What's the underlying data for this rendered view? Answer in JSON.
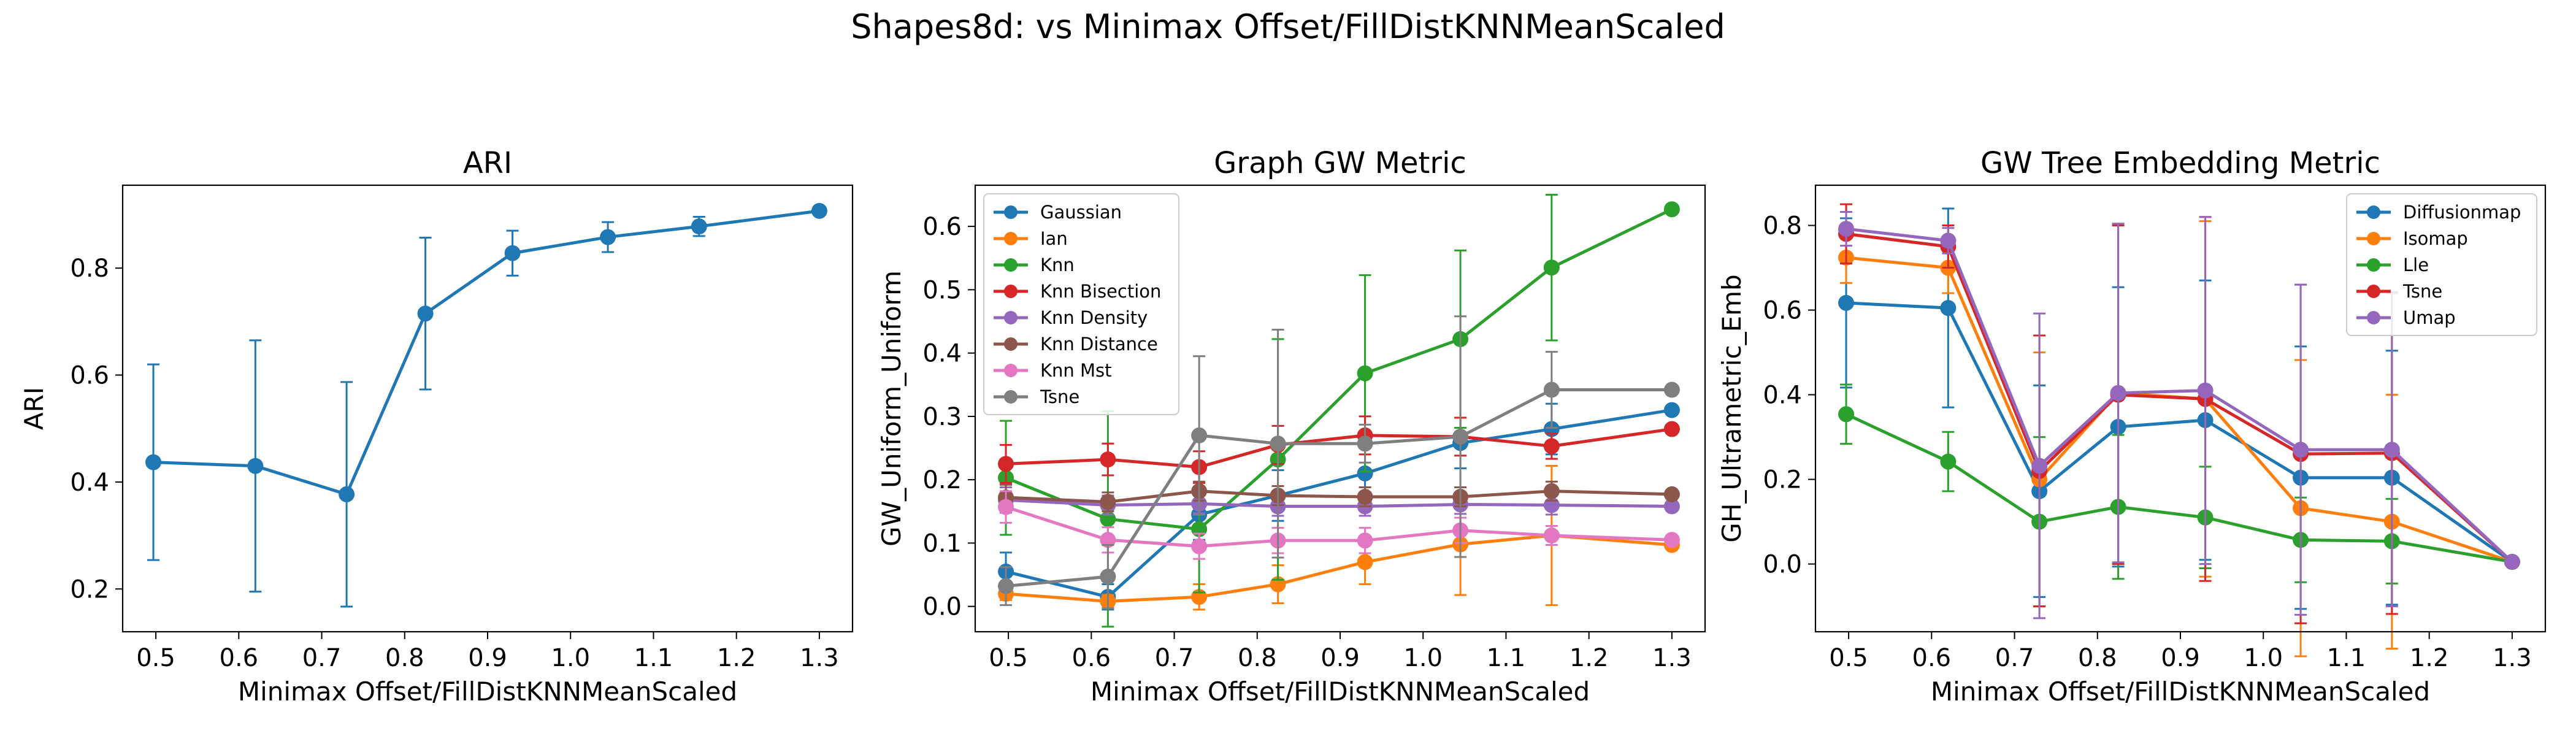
{
  "suptitle": "Shapes8d: vs Minimax Offset/FillDistKNNMeanScaled",
  "chart_data": [
    {
      "type": "line",
      "title": "ARI",
      "xlabel": "Minimax Offset/FillDistKNNMeanScaled",
      "ylabel": "ARI",
      "xlim": [
        0.46,
        1.34
      ],
      "ylim": [
        0.12,
        0.955
      ],
      "xticks": [
        0.5,
        0.6,
        0.7,
        0.8,
        0.9,
        1.0,
        1.1,
        1.2,
        1.3
      ],
      "xtick_labels": [
        "0.5",
        "0.6",
        "0.7",
        "0.8",
        "0.9",
        "1.0",
        "1.1",
        "1.2",
        "1.3"
      ],
      "yticks": [
        0.2,
        0.4,
        0.6,
        0.8
      ],
      "ytick_labels": [
        "0.2",
        "0.4",
        "0.6",
        "0.8"
      ],
      "x": [
        0.497,
        0.62,
        0.73,
        0.825,
        0.93,
        1.045,
        1.155,
        1.3
      ],
      "legend": null,
      "series": [
        {
          "color": "#1f77b4",
          "marker": "circle",
          "values": [
            0.437,
            0.43,
            0.377,
            0.715,
            0.828,
            0.858,
            0.878,
            0.907
          ],
          "err": [
            0.183,
            0.235,
            0.21,
            0.142,
            0.042,
            0.028,
            0.018,
            0.0
          ]
        }
      ]
    },
    {
      "type": "line",
      "title": "Graph GW Metric",
      "xlabel": "Minimax Offset/FillDistKNNMeanScaled",
      "ylabel": "GW_Uniform_Uniform",
      "xlim": [
        0.46,
        1.34
      ],
      "ylim": [
        -0.04,
        0.665
      ],
      "xticks": [
        0.5,
        0.6,
        0.7,
        0.8,
        0.9,
        1.0,
        1.1,
        1.2,
        1.3
      ],
      "xtick_labels": [
        "0.5",
        "0.6",
        "0.7",
        "0.8",
        "0.9",
        "1.0",
        "1.1",
        "1.2",
        "1.3"
      ],
      "yticks": [
        0.0,
        0.1,
        0.2,
        0.3,
        0.4,
        0.5,
        0.6
      ],
      "ytick_labels": [
        "0.0",
        "0.1",
        "0.2",
        "0.3",
        "0.4",
        "0.5",
        "0.6"
      ],
      "x": [
        0.497,
        0.62,
        0.73,
        0.825,
        0.93,
        1.045,
        1.155,
        1.3
      ],
      "legend": "upper-left",
      "series": [
        {
          "name": "Gaussian",
          "color": "#1f77b4",
          "marker": "circle",
          "values": [
            0.055,
            0.015,
            0.145,
            0.175,
            0.21,
            0.258,
            0.28,
            0.31
          ],
          "err": [
            0.03,
            0.02,
            0.04,
            0.04,
            0.04,
            0.04,
            0.04,
            0.0
          ]
        },
        {
          "name": "Ian",
          "color": "#ff7f0e",
          "marker": "circle",
          "values": [
            0.02,
            0.008,
            0.015,
            0.035,
            0.07,
            0.098,
            0.112,
            0.097
          ],
          "err": [
            0.01,
            0.01,
            0.02,
            0.03,
            0.035,
            0.08,
            0.11,
            0.0
          ]
        },
        {
          "name": "Knn",
          "color": "#2ca02c",
          "marker": "circle",
          "values": [
            0.203,
            0.138,
            0.122,
            0.232,
            0.368,
            0.422,
            0.535,
            0.627
          ],
          "err": [
            0.09,
            0.17,
            0.1,
            0.19,
            0.155,
            0.14,
            0.115,
            0.0
          ]
        },
        {
          "name": "Knn Bisection",
          "color": "#d62728",
          "marker": "circle",
          "values": [
            0.225,
            0.232,
            0.22,
            0.255,
            0.27,
            0.268,
            0.253,
            0.28
          ],
          "err": [
            0.03,
            0.025,
            0.025,
            0.03,
            0.03,
            0.03,
            0.02,
            0.0
          ]
        },
        {
          "name": "Knn Density",
          "color": "#9467bd",
          "marker": "circle",
          "values": [
            0.168,
            0.16,
            0.162,
            0.158,
            0.158,
            0.161,
            0.16,
            0.158
          ],
          "err": [
            0.02,
            0.015,
            0.015,
            0.015,
            0.015,
            0.015,
            0.015,
            0.0
          ]
        },
        {
          "name": "Knn Distance",
          "color": "#8c564b",
          "marker": "circle",
          "values": [
            0.172,
            0.165,
            0.182,
            0.175,
            0.173,
            0.173,
            0.182,
            0.177
          ],
          "err": [
            0.02,
            0.015,
            0.015,
            0.015,
            0.015,
            0.015,
            0.015,
            0.0
          ]
        },
        {
          "name": "Knn Mst",
          "color": "#e377c2",
          "marker": "circle",
          "values": [
            0.157,
            0.105,
            0.095,
            0.104,
            0.104,
            0.12,
            0.112,
            0.105
          ],
          "err": [
            0.025,
            0.02,
            0.02,
            0.02,
            0.02,
            0.02,
            0.015,
            0.0
          ]
        },
        {
          "name": "Tsne",
          "color": "#7f7f7f",
          "marker": "circle",
          "values": [
            0.032,
            0.047,
            0.27,
            0.257,
            0.257,
            0.268,
            0.342,
            0.342
          ],
          "err": [
            0.03,
            0.05,
            0.125,
            0.18,
            0.03,
            0.19,
            0.06,
            0.0
          ]
        }
      ]
    },
    {
      "type": "line",
      "title": "GW Tree Embedding Metric",
      "xlabel": "Minimax Offset/FillDistKNNMeanScaled",
      "ylabel": "GH_Ultrametric_Emb",
      "xlim": [
        0.46,
        1.34
      ],
      "ylim": [
        -0.16,
        0.895
      ],
      "xticks": [
        0.5,
        0.6,
        0.7,
        0.8,
        0.9,
        1.0,
        1.1,
        1.2,
        1.3
      ],
      "xtick_labels": [
        "0.5",
        "0.6",
        "0.7",
        "0.8",
        "0.9",
        "1.0",
        "1.1",
        "1.2",
        "1.3"
      ],
      "yticks": [
        0.0,
        0.2,
        0.4,
        0.6,
        0.8
      ],
      "ytick_labels": [
        "0.0",
        "0.2",
        "0.4",
        "0.6",
        "0.8"
      ],
      "x": [
        0.497,
        0.62,
        0.73,
        0.825,
        0.93,
        1.045,
        1.155,
        1.3
      ],
      "legend": "upper-right",
      "series": [
        {
          "name": "Diffusionmap",
          "color": "#1f77b4",
          "marker": "circle",
          "values": [
            0.617,
            0.605,
            0.172,
            0.324,
            0.34,
            0.204,
            0.204,
            0.005
          ],
          "err": [
            0.2,
            0.235,
            0.25,
            0.33,
            0.33,
            0.31,
            0.3,
            0.0
          ]
        },
        {
          "name": "Isomap",
          "color": "#ff7f0e",
          "marker": "circle",
          "values": [
            0.724,
            0.7,
            0.2,
            0.404,
            0.39,
            0.132,
            0.1,
            0.005
          ],
          "err": [
            0.06,
            0.06,
            0.3,
            0.4,
            0.42,
            0.35,
            0.3,
            0.0
          ]
        },
        {
          "name": "Lle",
          "color": "#2ca02c",
          "marker": "circle",
          "values": [
            0.354,
            0.242,
            0.1,
            0.135,
            0.11,
            0.057,
            0.054,
            0.005
          ],
          "err": [
            0.07,
            0.07,
            0.2,
            0.17,
            0.12,
            0.1,
            0.1,
            0.0
          ]
        },
        {
          "name": "Tsne",
          "color": "#d62728",
          "marker": "circle",
          "values": [
            0.78,
            0.75,
            0.22,
            0.4,
            0.39,
            0.26,
            0.262,
            0.005
          ],
          "err": [
            0.07,
            0.05,
            0.32,
            0.4,
            0.43,
            0.4,
            0.38,
            0.0
          ]
        },
        {
          "name": "Umap",
          "color": "#9467bd",
          "marker": "circle",
          "values": [
            0.792,
            0.764,
            0.232,
            0.404,
            0.41,
            0.27,
            0.27,
            0.005
          ],
          "err": [
            0.04,
            0.03,
            0.36,
            0.4,
            0.41,
            0.39,
            0.37,
            0.0
          ]
        }
      ]
    }
  ]
}
